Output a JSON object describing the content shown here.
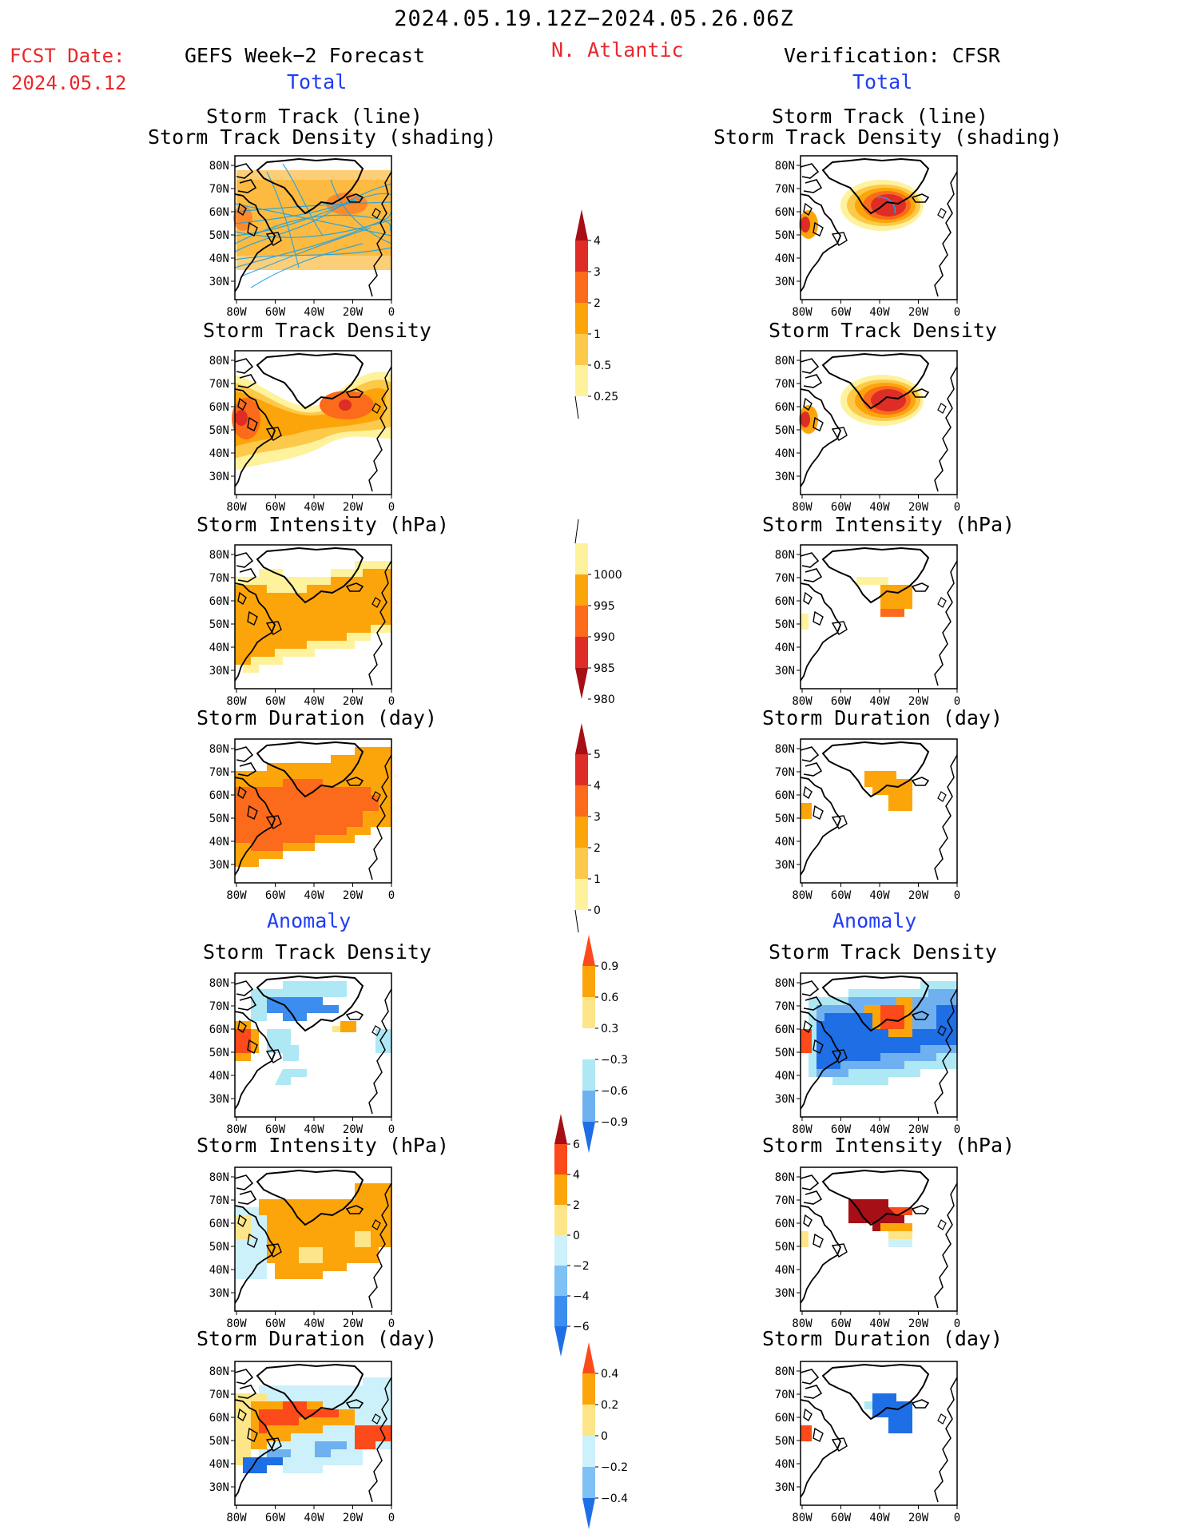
{
  "header": {
    "period": "2024.05.19.12Z−2024.05.26.06Z",
    "fcst_label": "FCST Date:",
    "fcst_date": "2024.05.12",
    "left_title": "GEFS Week−2 Forecast",
    "region": "N. Atlantic",
    "right_title": "Verification: CFSR",
    "left_section": "Total",
    "right_section": "Total",
    "anomaly_left": "Anomaly",
    "anomaly_right": "Anomaly"
  },
  "panel_titles": {
    "track_line": "Storm Track (line)",
    "track_density_shading": "Storm Track Density (shading)",
    "track_density": "Storm Track Density",
    "intensity": "Storm Intensity (hPa)",
    "duration": "Storm Duration (day)"
  },
  "axes": {
    "x_ticks": [
      "80W",
      "60W",
      "40W",
      "20W",
      "0"
    ],
    "y_ticks": [
      "80N",
      "70N",
      "60N",
      "50N",
      "40N",
      "30N"
    ]
  },
  "colorbars": [
    {
      "id": "density",
      "labels": [
        "4",
        "3",
        "2",
        "1",
        "0.5",
        "0.25"
      ],
      "colors": [
        "#a50f15",
        "#de2d26",
        "#fc6a1b",
        "#fca50a",
        "#fdc94a",
        "#fef29d"
      ]
    },
    {
      "id": "intensity",
      "labels": [
        "1000",
        "995",
        "990",
        "985",
        "980"
      ],
      "colors": [
        "#fef29d",
        "#fca50a",
        "#fc6a1b",
        "#de2d26",
        "#a50f15"
      ]
    },
    {
      "id": "duration",
      "labels": [
        "5",
        "4",
        "3",
        "2",
        "1",
        "0"
      ],
      "colors": [
        "#a50f15",
        "#de2d26",
        "#fc6a1b",
        "#fca50a",
        "#fdc94a",
        "#fef29d"
      ]
    },
    {
      "id": "density_anom",
      "labels": [
        "0.9",
        "0.6",
        "0.3",
        "−0.3",
        "−0.6",
        "−0.9"
      ],
      "colors": [
        "#fc4a1a",
        "#fca50a",
        "#fde68a",
        "#ffffff",
        "#aee8f5",
        "#6fb1f0",
        "#1e6fe6"
      ]
    },
    {
      "id": "intensity_anom",
      "labels": [
        "6",
        "4",
        "2",
        "0",
        "−2",
        "−4",
        "−6"
      ],
      "colors": [
        "#a50f15",
        "#fc4a1a",
        "#fca50a",
        "#fde68a",
        "#ccf1fa",
        "#7fc0f5",
        "#3d8df0",
        "#1e6fe6"
      ]
    },
    {
      "id": "duration_anom",
      "labels": [
        "0.4",
        "0.2",
        "0",
        "−0.2",
        "−0.4"
      ],
      "colors": [
        "#fc4a1a",
        "#fca50a",
        "#fde68a",
        "#ccf1fa",
        "#7fc0f5",
        "#1e6fe6"
      ]
    }
  ],
  "colors": {
    "title_red": "#e8282b",
    "section_blue": "#1f3df5",
    "track_line": "#1aa3e8"
  }
}
